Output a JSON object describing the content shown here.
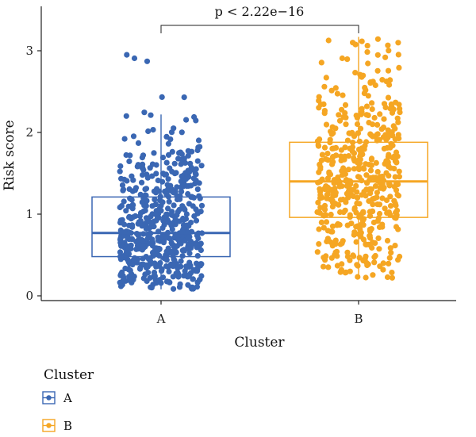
{
  "chart_data": {
    "type": "box",
    "overlay": "jittered points",
    "xlabel": "Cluster",
    "ylabel": "Risk score",
    "categories": [
      "A",
      "B"
    ],
    "ylim": [
      -0.05,
      3.35
    ],
    "yticks": [
      0,
      1,
      2,
      3
    ],
    "grid": false,
    "annotation": "p < 2.22e−16",
    "legend": {
      "title": "Cluster",
      "position": "bottom-left",
      "entries": [
        "A",
        "B"
      ]
    },
    "series": [
      {
        "name": "A",
        "color": "#3a67b3",
        "box": {
          "whisker_low": 0.08,
          "q1": 0.48,
          "median": 0.77,
          "q3": 1.21,
          "whisker_high": 2.22
        },
        "n_points": 560,
        "point_range": [
          0.08,
          2.97
        ]
      },
      {
        "name": "B",
        "color": "#f5a623",
        "box": {
          "whisker_low": 0.22,
          "q1": 0.96,
          "median": 1.4,
          "q3": 1.88,
          "whisker_high": 3.17
        },
        "n_points": 500,
        "point_range": [
          0.22,
          3.17
        ]
      }
    ]
  }
}
